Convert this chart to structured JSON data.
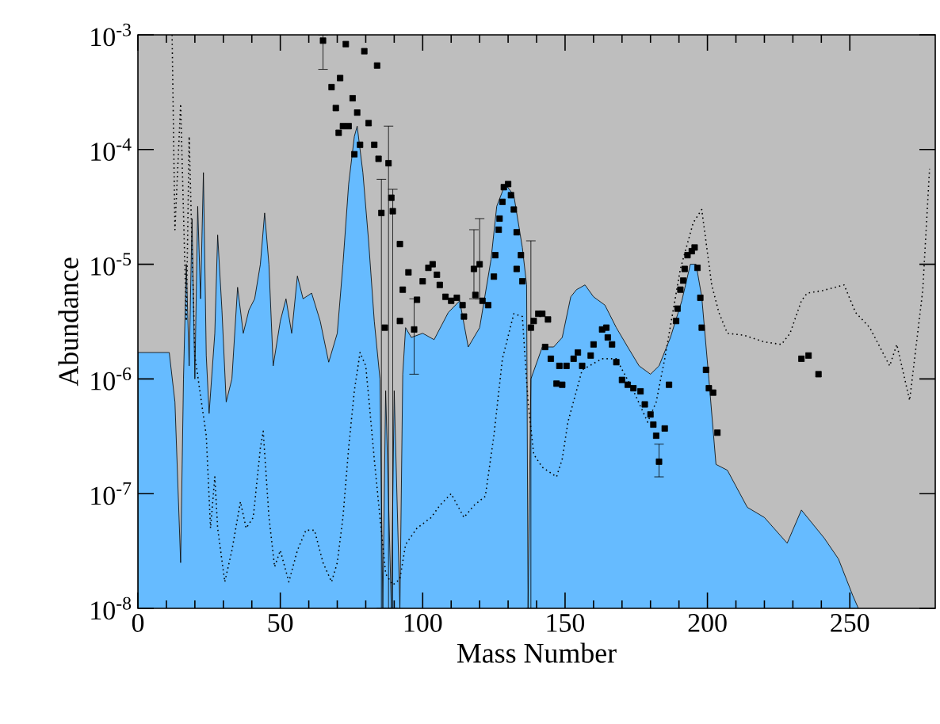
{
  "chart_data": {
    "type": "area",
    "xlabel": "Mass Number",
    "ylabel": "Abundance",
    "log": "y",
    "xlim": [
      0,
      280
    ],
    "ylim": [
      1e-08,
      0.001
    ],
    "xticks": [
      0,
      50,
      100,
      150,
      200,
      250
    ],
    "yticks": [
      {
        "value": 1e-08,
        "label": "10$^{-8}$"
      },
      {
        "value": 1e-07,
        "label": "10$^{-7}$"
      },
      {
        "value": 1e-06,
        "label": "10$^{-6}$"
      },
      {
        "value": 1e-05,
        "label": "10$^{-5}$"
      },
      {
        "value": 0.0001,
        "label": "10$^{-4}$"
      },
      {
        "value": 0.001,
        "label": "10$^{-3}$"
      }
    ],
    "bands": [
      {
        "axis": "x",
        "from": 0,
        "to": 280,
        "color": "#bebebe"
      }
    ],
    "series": [
      {
        "color": "#66bbff",
        "x": [
          0,
          11,
          13,
          15,
          16,
          17,
          18,
          19,
          20,
          21,
          22,
          23,
          24,
          25,
          27,
          28,
          29.5,
          31,
          33,
          35,
          37,
          39,
          41,
          43,
          44.5,
          46,
          47.5,
          50,
          52,
          54,
          56,
          58,
          61,
          64,
          67,
          70,
          72,
          74,
          76,
          77,
          79,
          81,
          83,
          85,
          86,
          87,
          89,
          90,
          92,
          93,
          94,
          96,
          100,
          104,
          109,
          113,
          116,
          120,
          124,
          126,
          129,
          132,
          135,
          136.5,
          137,
          138,
          142,
          146,
          149,
          152,
          154,
          157,
          160,
          164,
          168,
          172,
          176,
          180,
          183,
          187,
          191,
          194,
          196,
          198,
          200.5,
          203,
          207,
          214,
          220,
          228,
          233,
          241,
          246,
          251,
          253
        ],
        "values": [
          1.7e-06,
          1.7e-06,
          6.3e-07,
          2.5e-08,
          1e-06,
          1e-05,
          1.3e-06,
          2.5e-05,
          1e-06,
          3.2e-05,
          5e-06,
          6.3e-05,
          1.6e-06,
          5e-07,
          2.5e-06,
          1.8e-05,
          4e-06,
          6.3e-07,
          1e-06,
          6.3e-06,
          2.5e-06,
          4e-06,
          5e-06,
          1e-05,
          2.8e-05,
          1e-05,
          1.3e-06,
          3.2e-06,
          5e-06,
          2.5e-06,
          7.9e-06,
          5e-06,
          5.6e-06,
          3.2e-06,
          1.4e-06,
          2.5e-06,
          1e-05,
          5e-05,
          0.00013,
          0.00016,
          6.3e-05,
          1.6e-05,
          3.2e-06,
          1e-06,
          1e-08,
          7.9e-07,
          1e-08,
          7.9e-07,
          1e-08,
          1.1e-06,
          2.8e-06,
          2.3e-06,
          2.5e-06,
          2.2e-06,
          3.8e-06,
          4.8e-06,
          1.9e-06,
          2.8e-06,
          1.1e-05,
          3.2e-05,
          5e-05,
          4e-05,
          1.4e-05,
          6.6e-06,
          1e-08,
          1e-06,
          1.9e-06,
          1.9e-06,
          2.3e-06,
          5.2e-06,
          6e-06,
          6.6e-06,
          5.2e-06,
          4.4e-06,
          2.8e-06,
          1.9e-06,
          1.3e-06,
          1.1e-06,
          1.3e-06,
          2.3e-06,
          4.8e-06,
          1e-05,
          1e-05,
          5.2e-06,
          1e-06,
          1.8e-07,
          1.6e-07,
          7.6e-08,
          6.2e-08,
          3.7e-08,
          7.2e-08,
          4.1e-08,
          2.7e-08,
          1.3e-08,
          1e-08
        ]
      },
      {
        "type": "line",
        "color": "#000000",
        "line_style": "dotted",
        "x": [
          12,
          13,
          15,
          17,
          18,
          20,
          22,
          24,
          25.5,
          27,
          28,
          30.5,
          33,
          36,
          38,
          40.5,
          43,
          44,
          46,
          48,
          50,
          53,
          56,
          59,
          62,
          65,
          68,
          70,
          72,
          74,
          76,
          78,
          80,
          81,
          83,
          85,
          87,
          89.5,
          92,
          94,
          98,
          103,
          106,
          110,
          114.5,
          118,
          122,
          125,
          128,
          132,
          135,
          137,
          139,
          142,
          147,
          149,
          151,
          156,
          163,
          168,
          174,
          179,
          182,
          185,
          190.5,
          195,
          198,
          201.5,
          204,
          207,
          213,
          220,
          226,
          229,
          233,
          235,
          240.5,
          248,
          252,
          257,
          264,
          266.5,
          271,
          275.6,
          278
        ],
        "values": [
          0.001,
          2e-05,
          0.00025,
          3.2e-06,
          0.00013,
          1.6e-06,
          7.1e-07,
          3.2e-07,
          5e-08,
          1.4e-07,
          5e-08,
          1.7e-08,
          3.2e-08,
          8.5e-08,
          5e-08,
          6.2e-08,
          2.5e-07,
          3.5e-07,
          6.3e-08,
          2.3e-08,
          3.2e-08,
          1.7e-08,
          3.2e-08,
          4.8e-08,
          4.8e-08,
          2.5e-08,
          1.7e-08,
          2.5e-08,
          6.2e-08,
          2.5e-07,
          7.9e-07,
          1.7e-06,
          1.3e-06,
          7.1e-07,
          2e-07,
          6.2e-08,
          2e-08,
          1.6e-08,
          1.8e-08,
          3.6e-08,
          5e-08,
          6.2e-08,
          7.9e-08,
          1e-07,
          6.2e-08,
          7.9e-08,
          9.5e-08,
          3.2e-07,
          1.5e-06,
          3.7e-06,
          3.5e-06,
          6.3e-07,
          2.2e-07,
          1.7e-07,
          1.4e-07,
          2e-07,
          4.2e-07,
          1.2e-06,
          1.5e-06,
          1.5e-06,
          7.9e-07,
          4.2e-07,
          6.3e-07,
          1.5e-06,
          9.1e-06,
          2.3e-05,
          3e-05,
          6.6e-06,
          3.8e-06,
          2.5e-06,
          2.4e-06,
          2.1e-06,
          2e-06,
          2.5e-06,
          4.8e-06,
          5.6e-06,
          5.9e-06,
          6.6e-06,
          3.8e-06,
          2.8e-06,
          1.3e-06,
          2e-06,
          6.5e-07,
          5.9e-06,
          6.8e-05
        ]
      },
      {
        "type": "scatter",
        "color": "#000000",
        "marker": "square",
        "x": [
          65,
          68,
          69.5,
          70.5,
          71,
          72,
          73,
          74,
          75.4,
          76,
          77,
          78,
          79.5,
          81,
          83,
          84,
          84.5,
          85.5,
          86.7,
          88,
          89,
          89.5,
          92,
          92,
          93,
          95,
          97,
          98,
          100,
          102,
          103.5,
          105,
          106,
          108,
          110,
          112,
          114,
          114.5,
          118,
          118.5,
          120,
          121,
          123,
          125,
          125.5,
          126.7,
          127,
          128,
          128.5,
          130,
          131,
          132,
          133,
          134.5,
          133,
          135,
          138,
          139,
          140.6,
          142,
          144,
          143,
          145,
          147,
          149,
          148,
          150.5,
          153,
          154.5,
          156,
          159,
          160,
          163,
          164.5,
          165,
          166.5,
          168,
          170,
          172,
          174,
          176.5,
          178,
          180,
          181,
          182,
          183,
          185,
          186.5,
          189,
          189.5,
          190.5,
          191.5,
          192,
          193,
          194.5,
          195.5,
          196.5,
          197.5,
          198,
          199.5,
          200.5,
          202,
          203.5,
          233,
          235.5,
          239
        ],
        "values": [
          0.00089,
          0.00035,
          0.00023,
          0.00014,
          0.00042,
          0.00016,
          0.00083,
          0.00016,
          0.00028,
          9.1e-05,
          0.00021,
          0.00011,
          0.00072,
          0.00017,
          0.00011,
          0.00054,
          8.3e-05,
          2.8e-05,
          2.8e-06,
          7.6e-05,
          3.8e-05,
          2.9e-05,
          1.5e-05,
          3.2e-06,
          6e-06,
          8.5e-06,
          2.7e-06,
          4.9e-06,
          7.1e-06,
          9.3e-06,
          1e-05,
          8.1e-06,
          6.6e-06,
          5.2e-06,
          4.8e-06,
          5.1e-06,
          4.4e-06,
          3.5e-06,
          9.1e-06,
          5.4e-06,
          1e-05,
          4.8e-06,
          4.4e-06,
          7.8e-06,
          1.2e-05,
          2e-05,
          2.5e-05,
          3.5e-05,
          4.7e-05,
          5e-05,
          4e-05,
          3e-05,
          1.9e-05,
          1.2e-05,
          9.1e-06,
          7.1e-06,
          2.8e-06,
          3.2e-06,
          3.7e-06,
          3.7e-06,
          3.3e-06,
          1.9e-06,
          1.5e-06,
          9.1e-07,
          8.9e-07,
          1.3e-06,
          1.3e-06,
          1.5e-06,
          1.7e-06,
          1.3e-06,
          1.6e-06,
          2e-06,
          2.7e-06,
          2.8e-06,
          2.3e-06,
          2e-06,
          1.4e-06,
          9.8e-07,
          8.9e-07,
          8.3e-07,
          7.8e-07,
          6e-07,
          4.9e-07,
          4e-07,
          3.2e-07,
          1.9e-07,
          3.7e-07,
          8.9e-07,
          3.2e-06,
          4.1e-06,
          6e-06,
          7.2e-06,
          9.1e-06,
          1.2e-05,
          1.3e-05,
          1.4e-05,
          9.3e-06,
          5.1e-06,
          2.8e-06,
          1.2e-06,
          8.3e-07,
          7.6e-07,
          3.4e-07,
          1.5e-06,
          1.6e-06,
          1.1e-06
        ],
        "errors": [
          [
            0.0005,
            0.001
          ],
          null,
          null,
          null,
          null,
          null,
          null,
          null,
          null,
          null,
          null,
          null,
          null,
          null,
          null,
          null,
          null,
          [
            1e-08,
            5.5e-05
          ],
          null,
          [
            1e-08,
            0.00016
          ],
          null,
          [
            1e-08,
            4.5e-05
          ],
          null,
          null,
          null,
          null,
          [
            1.1e-06,
            5e-06
          ],
          null,
          null,
          null,
          null,
          null,
          null,
          null,
          null,
          null,
          null,
          null,
          [
            5e-06,
            2e-05
          ],
          null,
          [
            5e-06,
            2.5e-05
          ],
          null,
          null,
          null,
          null,
          null,
          null,
          null,
          null,
          null,
          null,
          null,
          null,
          null,
          null,
          null,
          [
            1e-08,
            1.6e-05
          ],
          null,
          null,
          null,
          null,
          null,
          null,
          null,
          null,
          null,
          null,
          null,
          null,
          null,
          null,
          null,
          null,
          null,
          null,
          null,
          null,
          null,
          null,
          null,
          null,
          null,
          null,
          null,
          null,
          [
            1.4e-07,
            2.7e-07
          ],
          null,
          null,
          null,
          null,
          null,
          null,
          null,
          null,
          null,
          null,
          null,
          null,
          null,
          null,
          null,
          null,
          null,
          null,
          null,
          null
        ]
      }
    ]
  }
}
